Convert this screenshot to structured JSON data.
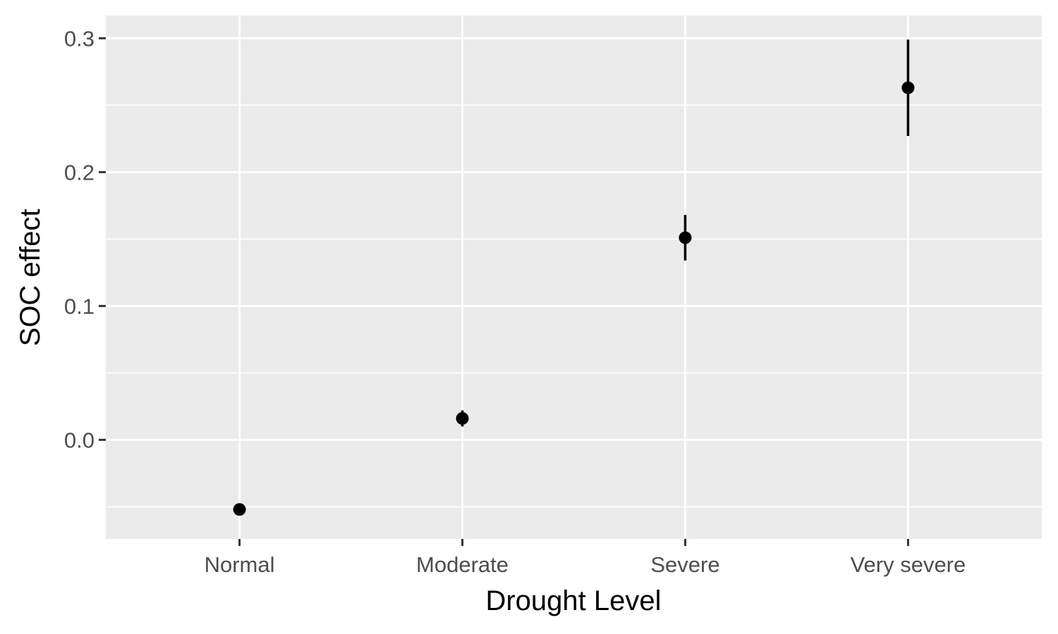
{
  "chart_data": {
    "type": "scatter",
    "xlabel": "Drought Level",
    "ylabel": "SOC effect",
    "categories": [
      "Normal",
      "Moderate",
      "Severe",
      "Very severe"
    ],
    "series": [
      {
        "values": [
          -0.052,
          0.016,
          0.151,
          0.263
        ],
        "lower": [
          -0.056,
          0.01,
          0.134,
          0.227
        ],
        "upper": [
          -0.048,
          0.022,
          0.168,
          0.299
        ]
      }
    ],
    "ylim": [
      -0.074,
      0.317
    ],
    "yticks": [
      0.0,
      0.1,
      0.2,
      0.3
    ],
    "ytick_labels": [
      "0.0",
      "0.1",
      "0.2",
      "0.3"
    ],
    "grid": true,
    "colors": {
      "panel": "#ebebeb",
      "grid": "#ffffff",
      "point": "#000000",
      "tick": "#333333"
    }
  }
}
